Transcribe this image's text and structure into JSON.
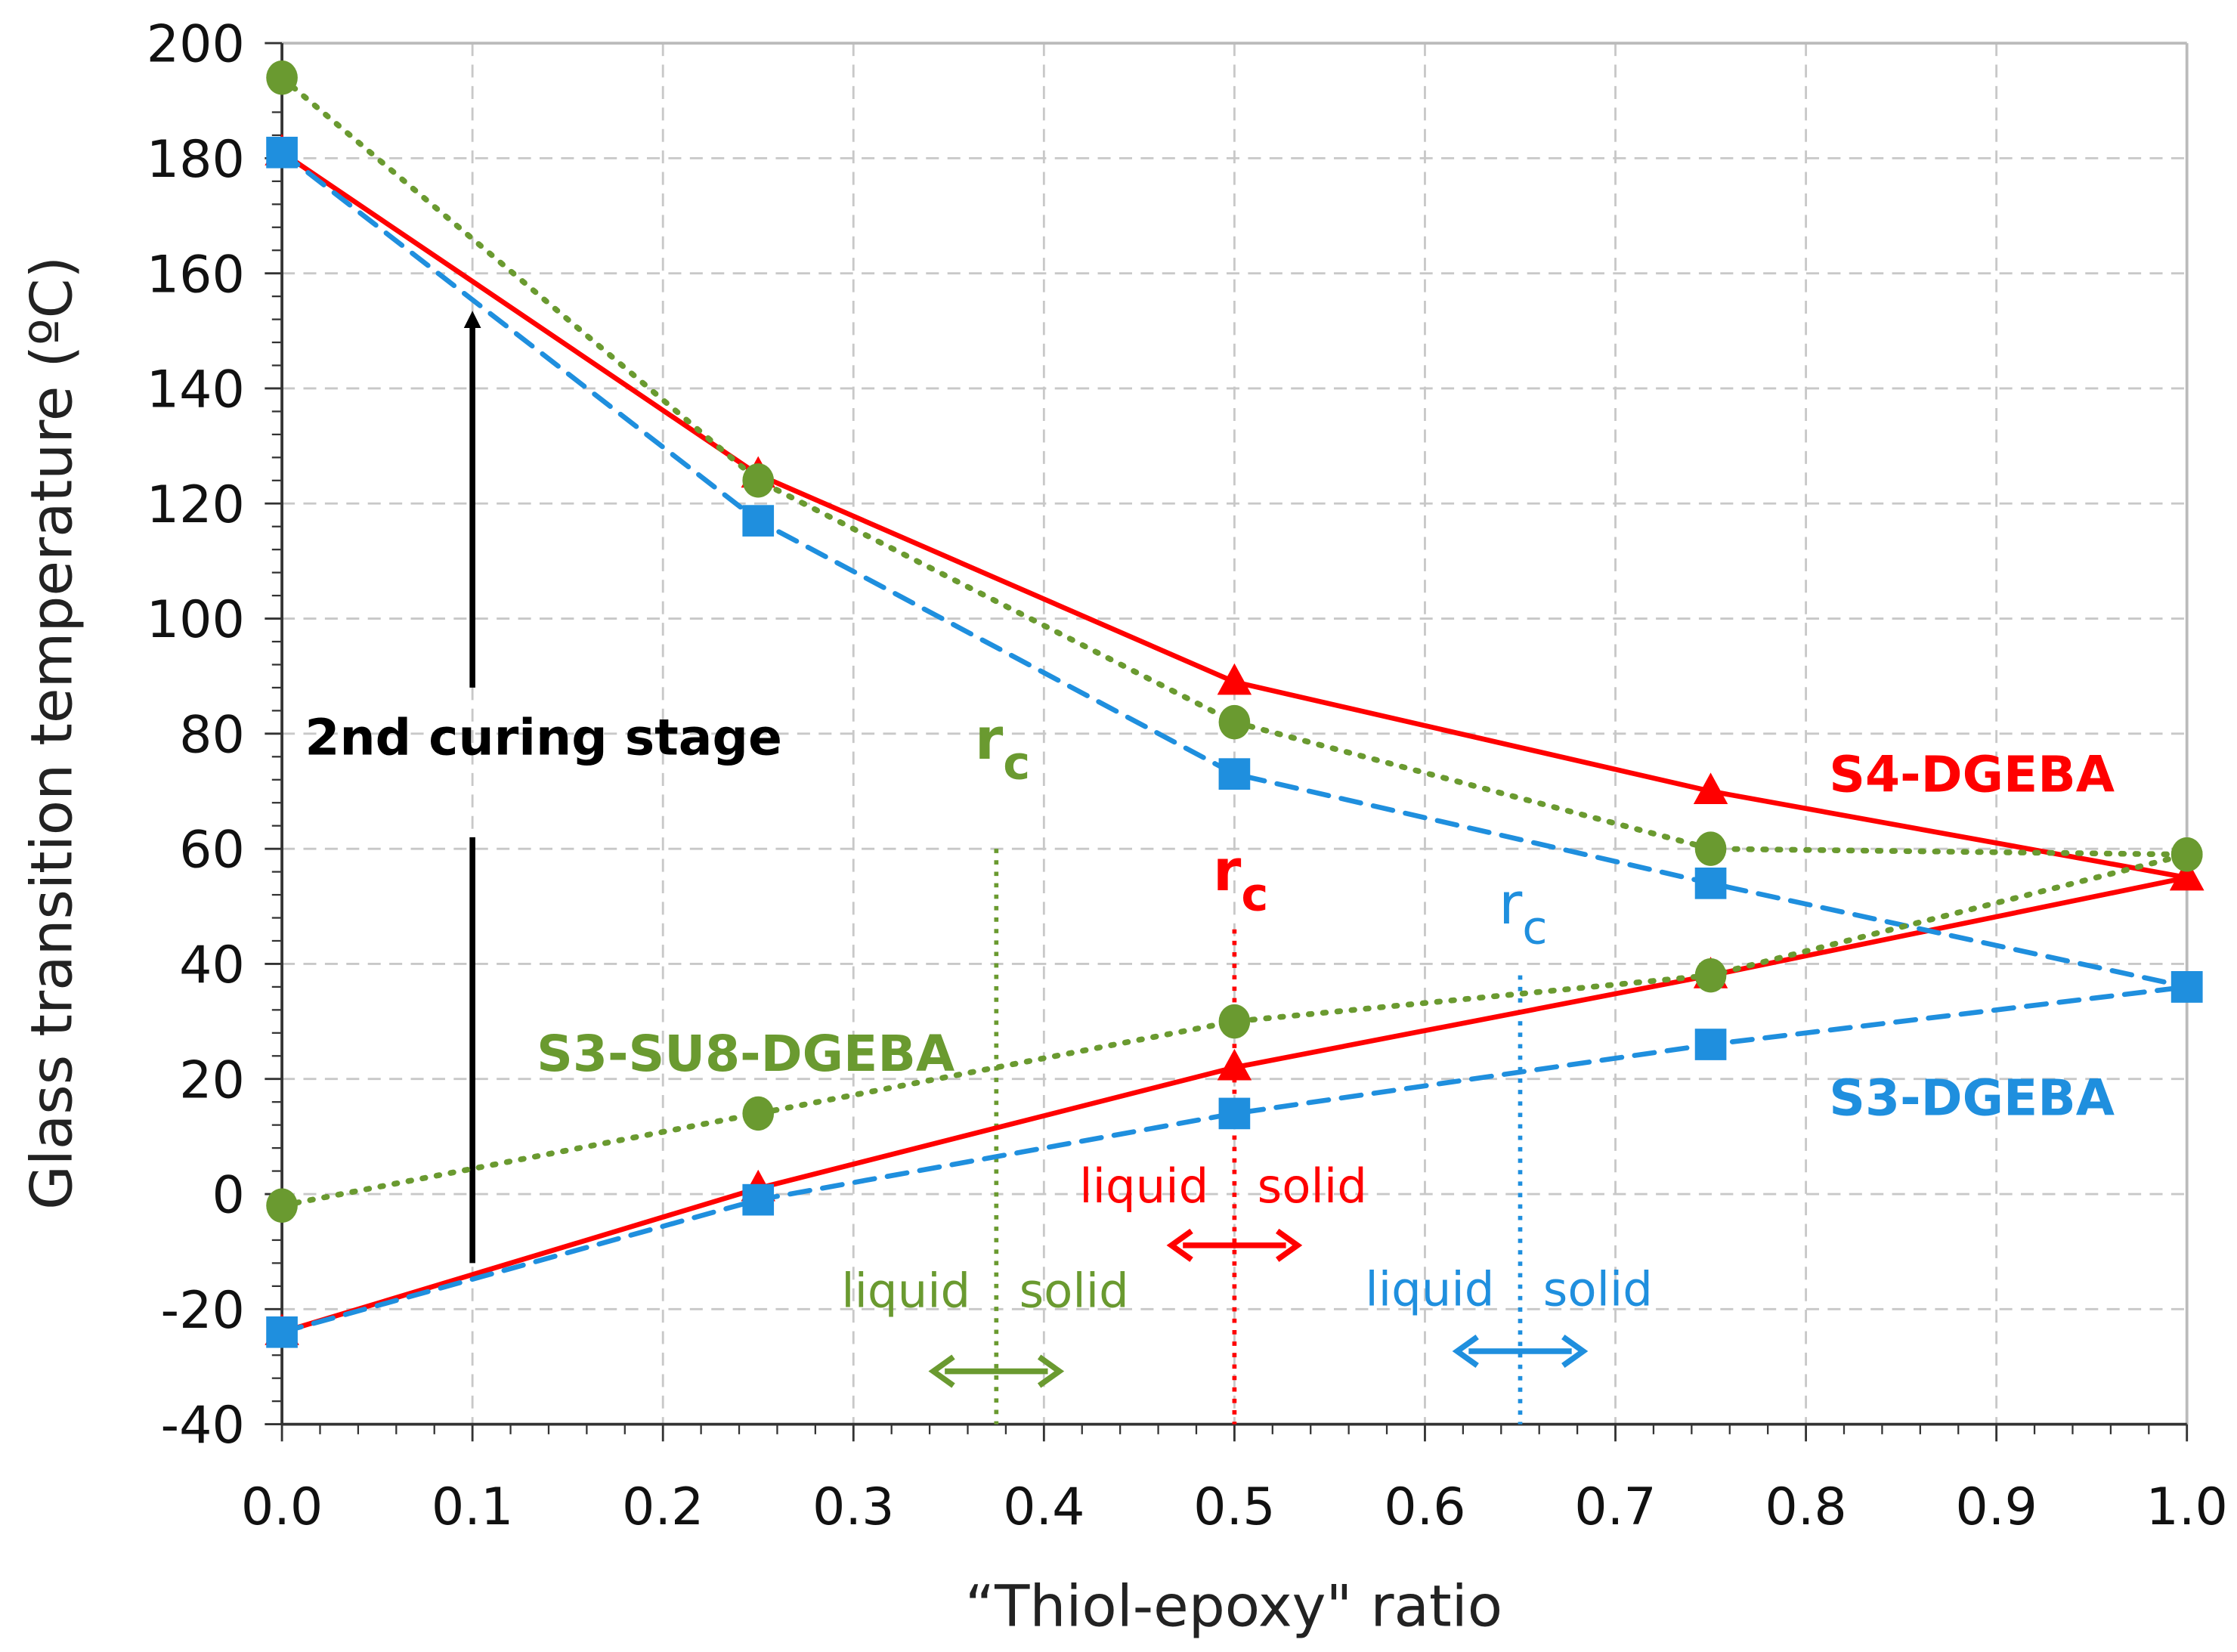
{
  "chart_data": {
    "type": "line",
    "title": "",
    "xlabel": "“Thiol-epoxy\" ratio",
    "ylabel": "Glass transition temperature (ºC)",
    "xlim": [
      0,
      1.0
    ],
    "ylim": [
      -40,
      200
    ],
    "grid": true,
    "x_ticks": [
      "0.0",
      "0.1",
      "0.2",
      "0.3",
      "0.4",
      "0.5",
      "0.6",
      "0.7",
      "0.8",
      "0.9",
      "1.0"
    ],
    "y_ticks": [
      "-40",
      "-20",
      "0",
      "20",
      "40",
      "60",
      "80",
      "100",
      "120",
      "140",
      "160",
      "180",
      "200"
    ],
    "x": [
      0,
      0.25,
      0.5,
      0.75,
      1.0
    ],
    "series": [
      {
        "name": "S4-DGEBA (upper)",
        "color": "#ff0000",
        "marker": "triangle",
        "style": "solid",
        "values": [
          181,
          125,
          89,
          70,
          55
        ]
      },
      {
        "name": "S4-DGEBA (lower)",
        "color": "#ff0000",
        "marker": "triangle",
        "style": "solid",
        "values": [
          -24,
          1,
          22,
          38,
          55
        ]
      },
      {
        "name": "S3-DGEBA (upper)",
        "color": "#1f8fde",
        "marker": "square",
        "style": "dashed",
        "values": [
          181,
          117,
          73,
          54,
          36
        ]
      },
      {
        "name": "S3-DGEBA (lower)",
        "color": "#1f8fde",
        "marker": "square",
        "style": "dashed",
        "values": [
          -24,
          -1,
          14,
          26,
          36
        ]
      },
      {
        "name": "S3-SU8-DGEBA (upper)",
        "color": "#6a9a30",
        "marker": "circle",
        "style": "dotted",
        "values": [
          194,
          124,
          82,
          60,
          59
        ]
      },
      {
        "name": "S3-SU8-DGEBA (lower)",
        "color": "#6a9a30",
        "marker": "circle",
        "style": "dotted",
        "values": [
          -2,
          14,
          30,
          38,
          59
        ]
      }
    ],
    "annotations": {
      "curing_label": "2nd curing stage",
      "s4_label": "S4-DGEBA",
      "s3_label": "S3-DGEBA",
      "su8_label": "S3-SU8-DGEBA",
      "rc": "r",
      "rc_sub": "c",
      "liquid": "liquid",
      "solid": "solid",
      "rc_values": {
        "green": 0.375,
        "red": 0.5,
        "blue": 0.65
      }
    }
  }
}
